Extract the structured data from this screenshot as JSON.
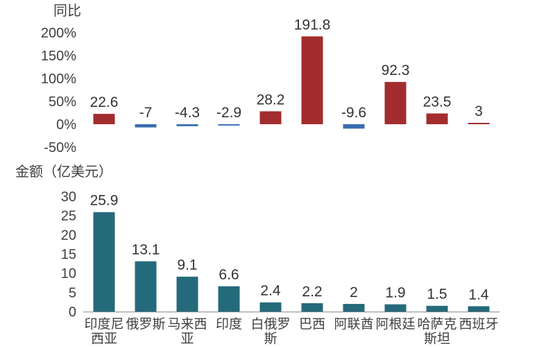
{
  "chart_data": [
    {
      "type": "bar",
      "ylabel": "同比",
      "ylim": [
        -50,
        200
      ],
      "yticks": [
        "200%",
        "150%",
        "100%",
        "50%",
        "0%",
        "-50%"
      ],
      "ytick_values": [
        200,
        150,
        100,
        50,
        0,
        -50
      ],
      "categories": [
        "印度尼西亚",
        "俄罗斯",
        "马来西亚",
        "印度",
        "白俄罗斯",
        "巴西",
        "阿联酋",
        "阿根廷",
        "哈萨克斯坦",
        "西班牙"
      ],
      "values": [
        22.6,
        -7,
        -4.3,
        -2.9,
        28.2,
        191.8,
        -9.6,
        92.3,
        23.5,
        3
      ],
      "value_labels": [
        "22.6",
        "-7",
        "-4.3",
        "-2.9",
        "28.2",
        "191.8",
        "-9.6",
        "92.3",
        "23.5",
        "3"
      ],
      "colors": {
        "positive": "#A32D2E",
        "negative": "#3A6EB0"
      },
      "grid": false
    },
    {
      "type": "bar",
      "ylabel": "金额（亿美元）",
      "ylim": [
        0,
        30
      ],
      "yticks": [
        "30",
        "25",
        "20",
        "15",
        "10",
        "5",
        "0"
      ],
      "ytick_values": [
        30,
        25,
        20,
        15,
        10,
        5,
        0
      ],
      "categories": [
        "印度尼西亚",
        "俄罗斯",
        "马来西亚",
        "印度",
        "白俄罗斯",
        "巴西",
        "阿联酋",
        "阿根廷",
        "哈萨克斯坦",
        "西班牙"
      ],
      "category_lines": [
        [
          "印度尼",
          "西亚"
        ],
        [
          "俄罗斯"
        ],
        [
          "马来西",
          "亚"
        ],
        [
          "印度"
        ],
        [
          "白俄罗",
          "斯"
        ],
        [
          "巴西"
        ],
        [
          "阿联酋"
        ],
        [
          "阿根廷"
        ],
        [
          "哈萨克",
          "斯坦"
        ],
        [
          "西班牙"
        ]
      ],
      "values": [
        25.9,
        13.1,
        9.1,
        6.6,
        2.4,
        2.2,
        2,
        1.9,
        1.5,
        1.4
      ],
      "value_labels": [
        "25.9",
        "13.1",
        "9.1",
        "6.6",
        "2.4",
        "2.2",
        "2",
        "1.9",
        "1.5",
        "1.4"
      ],
      "colors": {
        "bar": "#256A7A"
      },
      "grid": false
    }
  ]
}
